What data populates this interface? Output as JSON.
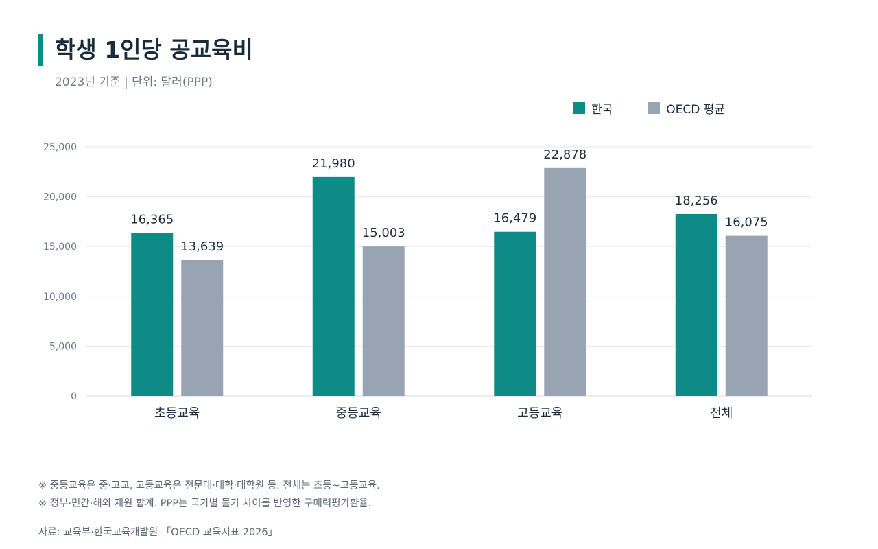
{
  "header": {
    "title": "학생 1인당 공교육비",
    "subtitle": "2023년 기준  |  단위: 달러(PPP)"
  },
  "colors": {
    "korea": "#0d8c87",
    "oecd": "#98a4b2",
    "grid": "#e4e7eb",
    "text": "#1f2d3d"
  },
  "chart_data": {
    "type": "bar",
    "categories": [
      "초등교육",
      "중등교육",
      "고등교육",
      "전체"
    ],
    "series": [
      {
        "name": "한국",
        "values": [
          16365,
          21980,
          16479,
          18256
        ]
      },
      {
        "name": "OECD 평균",
        "values": [
          13639,
          15003,
          22878,
          16075
        ]
      }
    ],
    "value_labels": [
      [
        "16,365",
        "21,980",
        "16,479",
        "18,256"
      ],
      [
        "13,639",
        "15,003",
        "22,878",
        "16,075"
      ]
    ],
    "ylim": [
      0,
      25000
    ],
    "yticks": [
      0,
      5000,
      10000,
      15000,
      20000,
      25000
    ],
    "ytick_labels": [
      "0",
      "5,000",
      "10,000",
      "15,000",
      "20,000",
      "25,000"
    ],
    "grid": true,
    "legend_position": "top-right"
  },
  "notes": [
    "※ 중등교육은 중·고교, 고등교육은 전문대·대학·대학원 등. 전체는 초등~고등교육.",
    "※ 정부·민간·해외 재원 합계. PPP는 국가별 물가 차이를 반영한 구매력평가환율."
  ],
  "source": "자료: 교육부·한국교육개발원 「OECD 교육지표 2026」"
}
